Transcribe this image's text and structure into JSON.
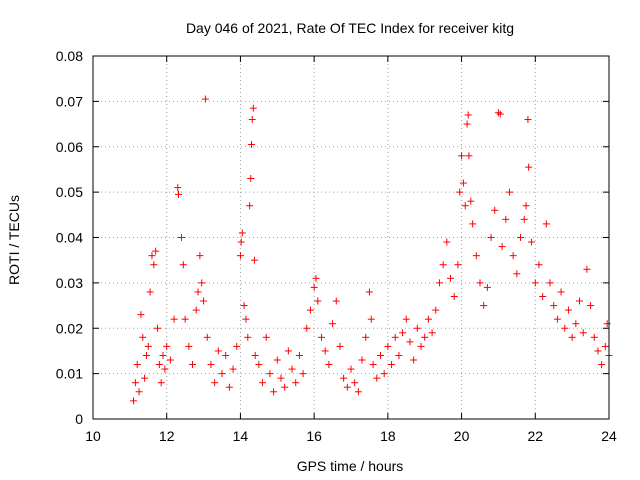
{
  "chart_data": {
    "type": "scatter",
    "title": "Day 046 of 2021, Rate Of TEC Index for receiver kitg",
    "xlabel": "GPS time / hours",
    "ylabel": "ROTI / TECUs",
    "xlim": [
      10,
      24
    ],
    "ylim": [
      0,
      0.08
    ],
    "xticks": [
      "10",
      "12",
      "14",
      "16",
      "18",
      "20",
      "22",
      "24"
    ],
    "yticks": [
      "0",
      "0.01",
      "0.02",
      "0.03",
      "0.04",
      "0.05",
      "0.06",
      "0.07",
      "0.08"
    ],
    "grid": true,
    "marker": "plus",
    "series": [
      {
        "name": "ROTI",
        "color": "#ff0000",
        "points": [
          [
            11.1,
            0.004
          ],
          [
            11.15,
            0.008
          ],
          [
            11.2,
            0.012
          ],
          [
            11.25,
            0.006
          ],
          [
            11.3,
            0.023
          ],
          [
            11.35,
            0.018
          ],
          [
            11.4,
            0.009
          ],
          [
            11.45,
            0.014
          ],
          [
            11.5,
            0.016
          ],
          [
            11.55,
            0.028
          ],
          [
            11.6,
            0.036
          ],
          [
            11.65,
            0.034
          ],
          [
            11.7,
            0.037
          ],
          [
            11.75,
            0.02
          ],
          [
            11.8,
            0.012
          ],
          [
            11.85,
            0.008
          ],
          [
            11.9,
            0.014
          ],
          [
            11.95,
            0.011
          ],
          [
            12.0,
            0.016
          ],
          [
            12.1,
            0.013
          ],
          [
            12.2,
            0.022
          ],
          [
            12.3,
            0.051
          ],
          [
            12.32,
            0.0495
          ],
          [
            12.4,
            0.04
          ],
          [
            12.45,
            0.034
          ],
          [
            12.5,
            0.022
          ],
          [
            12.6,
            0.016
          ],
          [
            12.7,
            0.012
          ],
          [
            12.8,
            0.024
          ],
          [
            12.85,
            0.028
          ],
          [
            12.9,
            0.036
          ],
          [
            12.95,
            0.03
          ],
          [
            13.0,
            0.026
          ],
          [
            13.05,
            0.0705
          ],
          [
            13.1,
            0.018
          ],
          [
            13.2,
            0.012
          ],
          [
            13.3,
            0.008
          ],
          [
            13.4,
            0.015
          ],
          [
            13.5,
            0.01
          ],
          [
            13.6,
            0.014
          ],
          [
            13.7,
            0.007
          ],
          [
            13.8,
            0.011
          ],
          [
            13.9,
            0.016
          ],
          [
            14.0,
            0.036
          ],
          [
            14.02,
            0.039
          ],
          [
            14.05,
            0.041
          ],
          [
            14.1,
            0.025
          ],
          [
            14.15,
            0.022
          ],
          [
            14.2,
            0.018
          ],
          [
            14.25,
            0.047
          ],
          [
            14.28,
            0.053
          ],
          [
            14.3,
            0.0605
          ],
          [
            14.32,
            0.066
          ],
          [
            14.35,
            0.0685
          ],
          [
            14.38,
            0.035
          ],
          [
            14.4,
            0.014
          ],
          [
            14.5,
            0.012
          ],
          [
            14.6,
            0.008
          ],
          [
            14.7,
            0.018
          ],
          [
            14.8,
            0.01
          ],
          [
            14.9,
            0.006
          ],
          [
            15.0,
            0.013
          ],
          [
            15.1,
            0.009
          ],
          [
            15.2,
            0.007
          ],
          [
            15.3,
            0.015
          ],
          [
            15.4,
            0.011
          ],
          [
            15.5,
            0.008
          ],
          [
            15.6,
            0.014
          ],
          [
            15.7,
            0.01
          ],
          [
            15.8,
            0.02
          ],
          [
            15.9,
            0.024
          ],
          [
            16.0,
            0.029
          ],
          [
            16.05,
            0.031
          ],
          [
            16.1,
            0.026
          ],
          [
            16.2,
            0.018
          ],
          [
            16.3,
            0.015
          ],
          [
            16.4,
            0.012
          ],
          [
            16.5,
            0.021
          ],
          [
            16.6,
            0.026
          ],
          [
            16.7,
            0.016
          ],
          [
            16.8,
            0.009
          ],
          [
            16.9,
            0.007
          ],
          [
            17.0,
            0.011
          ],
          [
            17.1,
            0.008
          ],
          [
            17.2,
            0.006
          ],
          [
            17.3,
            0.013
          ],
          [
            17.4,
            0.018
          ],
          [
            17.5,
            0.028
          ],
          [
            17.55,
            0.022
          ],
          [
            17.6,
            0.012
          ],
          [
            17.7,
            0.009
          ],
          [
            17.8,
            0.014
          ],
          [
            17.9,
            0.01
          ],
          [
            18.0,
            0.016
          ],
          [
            18.1,
            0.012
          ],
          [
            18.2,
            0.018
          ],
          [
            18.3,
            0.014
          ],
          [
            18.4,
            0.019
          ],
          [
            18.5,
            0.022
          ],
          [
            18.6,
            0.017
          ],
          [
            18.7,
            0.013
          ],
          [
            18.8,
            0.02
          ],
          [
            18.9,
            0.016
          ],
          [
            19.0,
            0.018
          ],
          [
            19.1,
            0.022
          ],
          [
            19.2,
            0.019
          ],
          [
            19.3,
            0.024
          ],
          [
            19.4,
            0.03
          ],
          [
            19.5,
            0.034
          ],
          [
            19.6,
            0.039
          ],
          [
            19.7,
            0.031
          ],
          [
            19.8,
            0.027
          ],
          [
            19.9,
            0.034
          ],
          [
            19.95,
            0.05
          ],
          [
            20.0,
            0.058
          ],
          [
            20.05,
            0.052
          ],
          [
            20.1,
            0.047
          ],
          [
            20.15,
            0.065
          ],
          [
            20.18,
            0.067
          ],
          [
            20.2,
            0.058
          ],
          [
            20.25,
            0.048
          ],
          [
            20.3,
            0.043
          ],
          [
            20.4,
            0.036
          ],
          [
            20.5,
            0.03
          ],
          [
            20.6,
            0.025
          ],
          [
            20.7,
            0.029
          ],
          [
            20.8,
            0.04
          ],
          [
            20.9,
            0.046
          ],
          [
            21.0,
            0.0675
          ],
          [
            21.05,
            0.0672
          ],
          [
            21.1,
            0.038
          ],
          [
            21.2,
            0.044
          ],
          [
            21.3,
            0.05
          ],
          [
            21.4,
            0.036
          ],
          [
            21.5,
            0.032
          ],
          [
            21.6,
            0.04
          ],
          [
            21.7,
            0.044
          ],
          [
            21.75,
            0.047
          ],
          [
            21.8,
            0.066
          ],
          [
            21.82,
            0.0555
          ],
          [
            21.9,
            0.039
          ],
          [
            22.0,
            0.03
          ],
          [
            22.1,
            0.034
          ],
          [
            22.2,
            0.027
          ],
          [
            22.3,
            0.043
          ],
          [
            22.4,
            0.03
          ],
          [
            22.5,
            0.025
          ],
          [
            22.6,
            0.022
          ],
          [
            22.7,
            0.028
          ],
          [
            22.8,
            0.02
          ],
          [
            22.9,
            0.024
          ],
          [
            23.0,
            0.018
          ],
          [
            23.1,
            0.021
          ],
          [
            23.2,
            0.026
          ],
          [
            23.3,
            0.019
          ],
          [
            23.4,
            0.033
          ],
          [
            23.5,
            0.025
          ],
          [
            23.6,
            0.018
          ],
          [
            23.7,
            0.015
          ],
          [
            23.8,
            0.012
          ],
          [
            23.9,
            0.016
          ],
          [
            23.95,
            0.021
          ],
          [
            24.0,
            0.014
          ]
        ]
      }
    ]
  }
}
